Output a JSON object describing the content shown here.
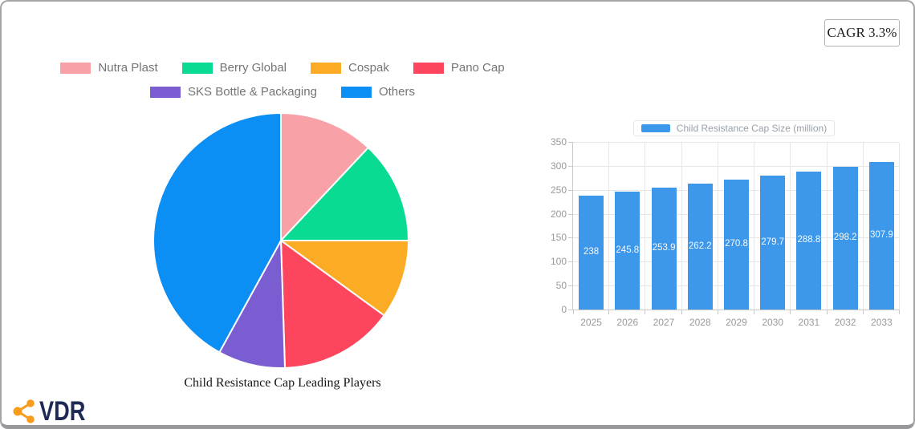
{
  "page": {
    "cagr_label": "CAGR 3.3%"
  },
  "logo": {
    "text": "VDR",
    "icon": "share-icon",
    "icon_color": "#F89C1E",
    "text_color": "#1e2a56"
  },
  "chart_data": [
    {
      "type": "pie",
      "title": "Child Resistance Cap Leading Players",
      "labels": [
        "Nutra Plast",
        "Berry Global",
        "Cospak",
        "Pano Cap",
        "SKS Bottle & Packaging",
        "Others"
      ],
      "values": [
        12,
        13,
        10,
        14.5,
        8.5,
        42
      ],
      "values_unit": "percent-estimated",
      "colors": [
        "#F8A1A7",
        "#0ADB92",
        "#FCAC24",
        "#FD455E",
        "#7A5DD0",
        "#0B8FF5"
      ],
      "start_angle_deg": 0,
      "direction": "clockwise",
      "legend_position": "top",
      "legend_text_color": "#757575"
    },
    {
      "type": "bar",
      "legend": "Child Resistance Cap Size (million)",
      "categories": [
        "2025",
        "2026",
        "2027",
        "2028",
        "2029",
        "2030",
        "2031",
        "2032",
        "2033"
      ],
      "values": [
        238,
        245.8,
        253.9,
        262.2,
        270.8,
        279.7,
        288.8,
        298.2,
        307.9
      ],
      "ylim": [
        0,
        350
      ],
      "ytick_interval": 50,
      "grid": true,
      "bar_color": "#3D97EA",
      "value_label_color": "#ffffff",
      "axis_label_color": "#999999",
      "legend_position": "top"
    }
  ]
}
